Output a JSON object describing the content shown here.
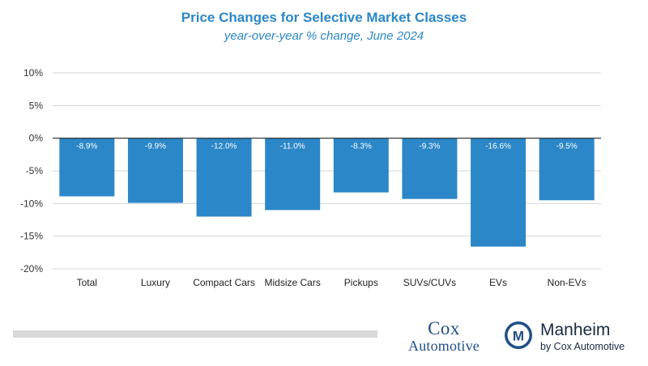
{
  "chart_data": {
    "type": "bar",
    "title": "Price Changes for Selective Market Classes",
    "subtitle": "year-over-year % change, June 2024",
    "categories": [
      "Total",
      "Luxury",
      "Compact Cars",
      "Midsize Cars",
      "Pickups",
      "SUVs/CUVs",
      "EVs",
      "Non-EVs"
    ],
    "values": [
      -8.9,
      -9.9,
      -12.0,
      -11.0,
      -8.3,
      -9.3,
      -16.6,
      -9.5
    ],
    "value_labels": [
      "-8.9%",
      "-9.9%",
      "-12.0%",
      "-11.0%",
      "-8.3%",
      "-9.3%",
      "-16.6%",
      "-9.5%"
    ],
    "yticks": [
      10,
      5,
      0,
      -5,
      -10,
      -15,
      -20
    ],
    "ytick_labels": [
      "10%",
      "5%",
      "0%",
      "-5%",
      "-10%",
      "-15%",
      "-20%"
    ],
    "ylim": [
      -20,
      10
    ],
    "xlabel": "",
    "ylabel": "",
    "grid": true,
    "bar_color": "#2b87c8"
  },
  "branding": {
    "cox_line1": "Cox",
    "cox_line2": "Automotive",
    "manheim_name": "Manheim",
    "manheim_sub": "by Cox Automotive",
    "manheim_letter": "M"
  }
}
